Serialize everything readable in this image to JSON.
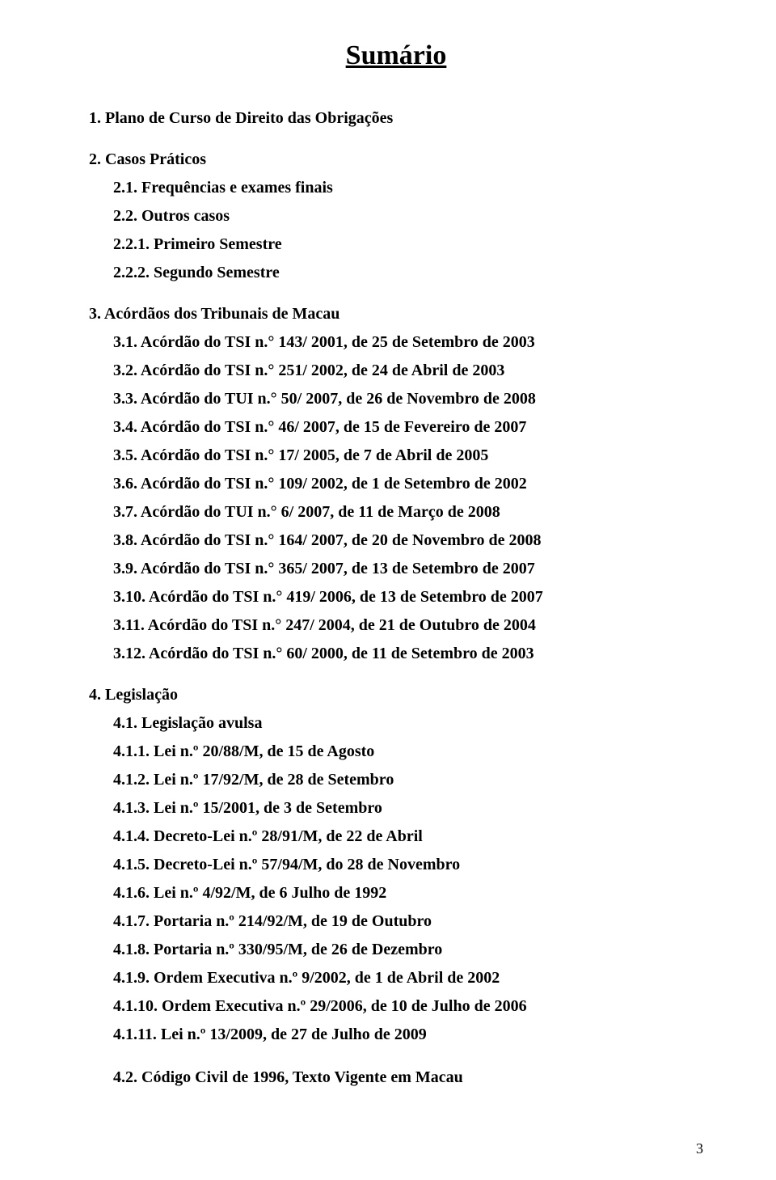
{
  "title": "Sumário",
  "page_number": "3",
  "sec1": {
    "item1": "1. Plano de Curso de Direito das Obrigações"
  },
  "sec2": {
    "head": "2. Casos Práticos",
    "i1": "2.1. Frequências e exames finais",
    "i2": "2.2. Outros casos",
    "i3": "2.2.1. Primeiro Semestre",
    "i4": "2.2.2. Segundo Semestre"
  },
  "sec3": {
    "head": "3. Acórdãos dos Tribunais de Macau",
    "i1": "3.1. Acórdão do TSI n.° 143/ 2001, de 25 de Setembro de 2003",
    "i2": "3.2. Acórdão do TSI n.° 251/ 2002, de 24 de Abril de 2003",
    "i3": "3.3. Acórdão do TUI n.° 50/ 2007, de 26 de Novembro de 2008",
    "i4": "3.4. Acórdão do TSI n.° 46/ 2007, de 15 de Fevereiro de 2007",
    "i5": "3.5. Acórdão do TSI n.° 17/ 2005, de 7 de Abril de 2005",
    "i6": "3.6. Acórdão do TSI n.° 109/ 2002, de 1 de Setembro de 2002",
    "i7": "3.7. Acórdão do TUI n.° 6/ 2007, de 11 de Março de 2008",
    "i8": "3.8. Acórdão do TSI n.° 164/ 2007, de 20 de Novembro de 2008",
    "i9": "3.9. Acórdão do TSI n.° 365/ 2007, de 13 de Setembro de 2007",
    "i10": "3.10. Acórdão do TSI n.° 419/ 2006, de 13 de Setembro de 2007",
    "i11": "3.11. Acórdão do TSI n.° 247/ 2004, de 21 de Outubro de 2004",
    "i12": "3.12. Acórdão do TSI n.° 60/ 2000, de 11 de Setembro de 2003"
  },
  "sec4": {
    "head": "4. Legislação",
    "s1head": "4.1. Legislação avulsa",
    "i1": "4.1.1. Lei n.º 20/88/M, de 15 de Agosto",
    "i2": "4.1.2. Lei n.º 17/92/M, de 28 de Setembro",
    "i3": "4.1.3. Lei n.º 15/2001, de 3 de Setembro",
    "i4": "4.1.4. Decreto-Lei n.º 28/91/M, de 22 de Abril",
    "i5": "4.1.5. Decreto-Lei n.º 57/94/M, do 28 de Novembro",
    "i6": "4.1.6. Lei n.º 4/92/M, de 6 Julho de 1992",
    "i7": "4.1.7. Portaria n.º 214/92/M, de 19 de Outubro",
    "i8": "4.1.8. Portaria n.º 330/95/M, de 26 de Dezembro",
    "i9": "4.1.9. Ordem Executiva n.º 9/2002, de 1 de Abril de 2002",
    "i10": "4.1.10. Ordem Executiva n.º 29/2006, de 10 de Julho de 2006",
    "i11": "4.1.11. Lei n.º 13/2009, de 27 de Julho de 2009",
    "s2": "4.2. Código Civil de 1996, Texto Vigente em Macau"
  }
}
